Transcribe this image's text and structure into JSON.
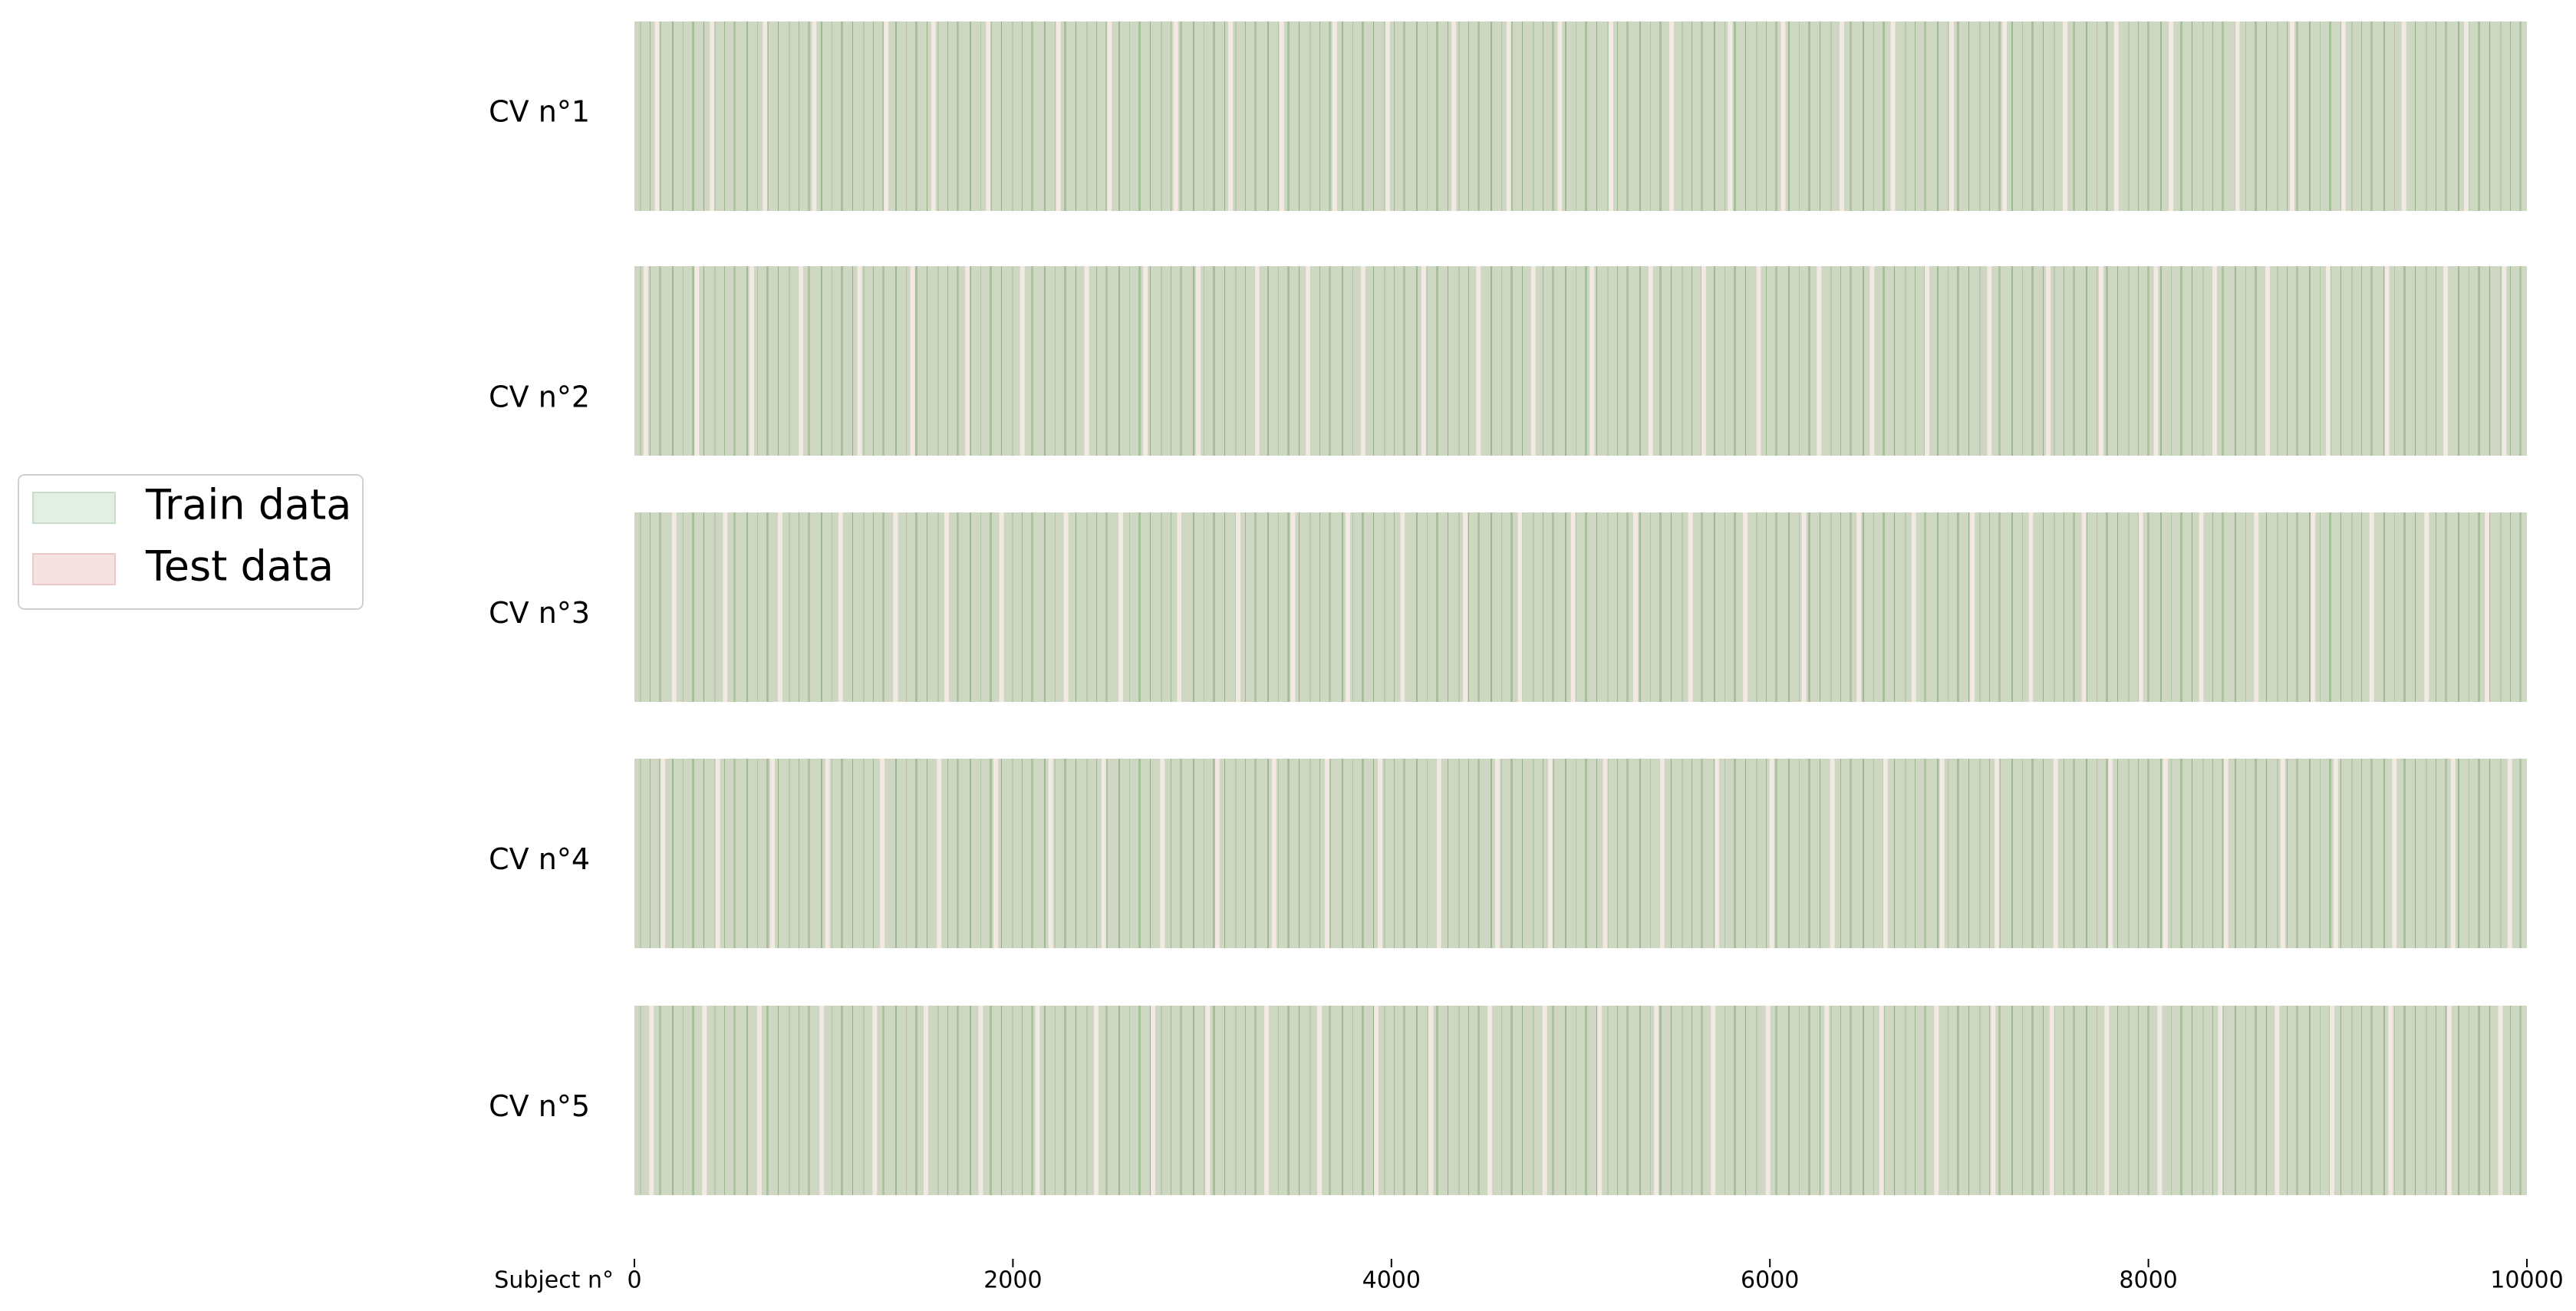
{
  "chart_data": {
    "type": "cv-folds",
    "folds": [
      {
        "name": "CV n°1",
        "test": [
          120,
          410,
          690,
          950,
          1330,
          1580,
          1870,
          2240,
          2510,
          2860,
          3150,
          3420,
          3700,
          3980,
          4330,
          4620,
          4890,
          5160,
          5480,
          5790,
          6070,
          6380,
          6650,
          6960,
          7240,
          7560,
          7830,
          8120,
          8470,
          8760,
          9030,
          9350,
          9680
        ]
      },
      {
        "name": "CV n°2",
        "test": [
          60,
          330,
          620,
          880,
          1190,
          1470,
          1760,
          2050,
          2390,
          2700,
          2980,
          3290,
          3560,
          3850,
          4170,
          4460,
          4750,
          5060,
          5370,
          5650,
          5940,
          6260,
          6540,
          6830,
          7160,
          7470,
          7750,
          8040,
          8350,
          8630,
          8950,
          9260,
          9570,
          9880
        ]
      },
      {
        "name": "CV n°3",
        "test": [
          210,
          480,
          770,
          1090,
          1380,
          1650,
          1940,
          2280,
          2570,
          2880,
          3190,
          3480,
          3770,
          4060,
          4390,
          4680,
          4960,
          5290,
          5580,
          5870,
          6180,
          6470,
          6760,
          7070,
          7380,
          7660,
          7960,
          8280,
          8570,
          8870,
          9180,
          9470,
          9790
        ]
      },
      {
        "name": "CV n°4",
        "test": [
          150,
          440,
          730,
          1020,
          1310,
          1610,
          1910,
          2200,
          2480,
          2790,
          3080,
          3380,
          3660,
          3940,
          4250,
          4560,
          4840,
          5130,
          5430,
          5720,
          6010,
          6330,
          6610,
          6910,
          7200,
          7510,
          7800,
          8090,
          8410,
          8710,
          8990,
          9300,
          9610,
          9910
        ]
      },
      {
        "name": "CV n°5",
        "test": [
          90,
          370,
          660,
          990,
          1270,
          1540,
          1830,
          2130,
          2440,
          2740,
          3030,
          3340,
          3620,
          3920,
          4210,
          4520,
          4810,
          5100,
          5400,
          5700,
          5990,
          6300,
          6590,
          6880,
          7180,
          7490,
          7780,
          8060,
          8380,
          8680,
          8970,
          9280,
          9590,
          9860
        ]
      }
    ],
    "xlabel": "Subject n°",
    "xlim": [
      0,
      10000
    ],
    "xticks": [
      0,
      2000,
      4000,
      6000,
      8000,
      10000
    ],
    "legend": [
      {
        "name": "Train data",
        "color": "#e3efe3",
        "bar_color": "#cdd7c2"
      },
      {
        "name": "Test data",
        "color": "#f5e3e3",
        "bar_color": "#f2e9e4"
      }
    ],
    "legend_position": "left"
  }
}
